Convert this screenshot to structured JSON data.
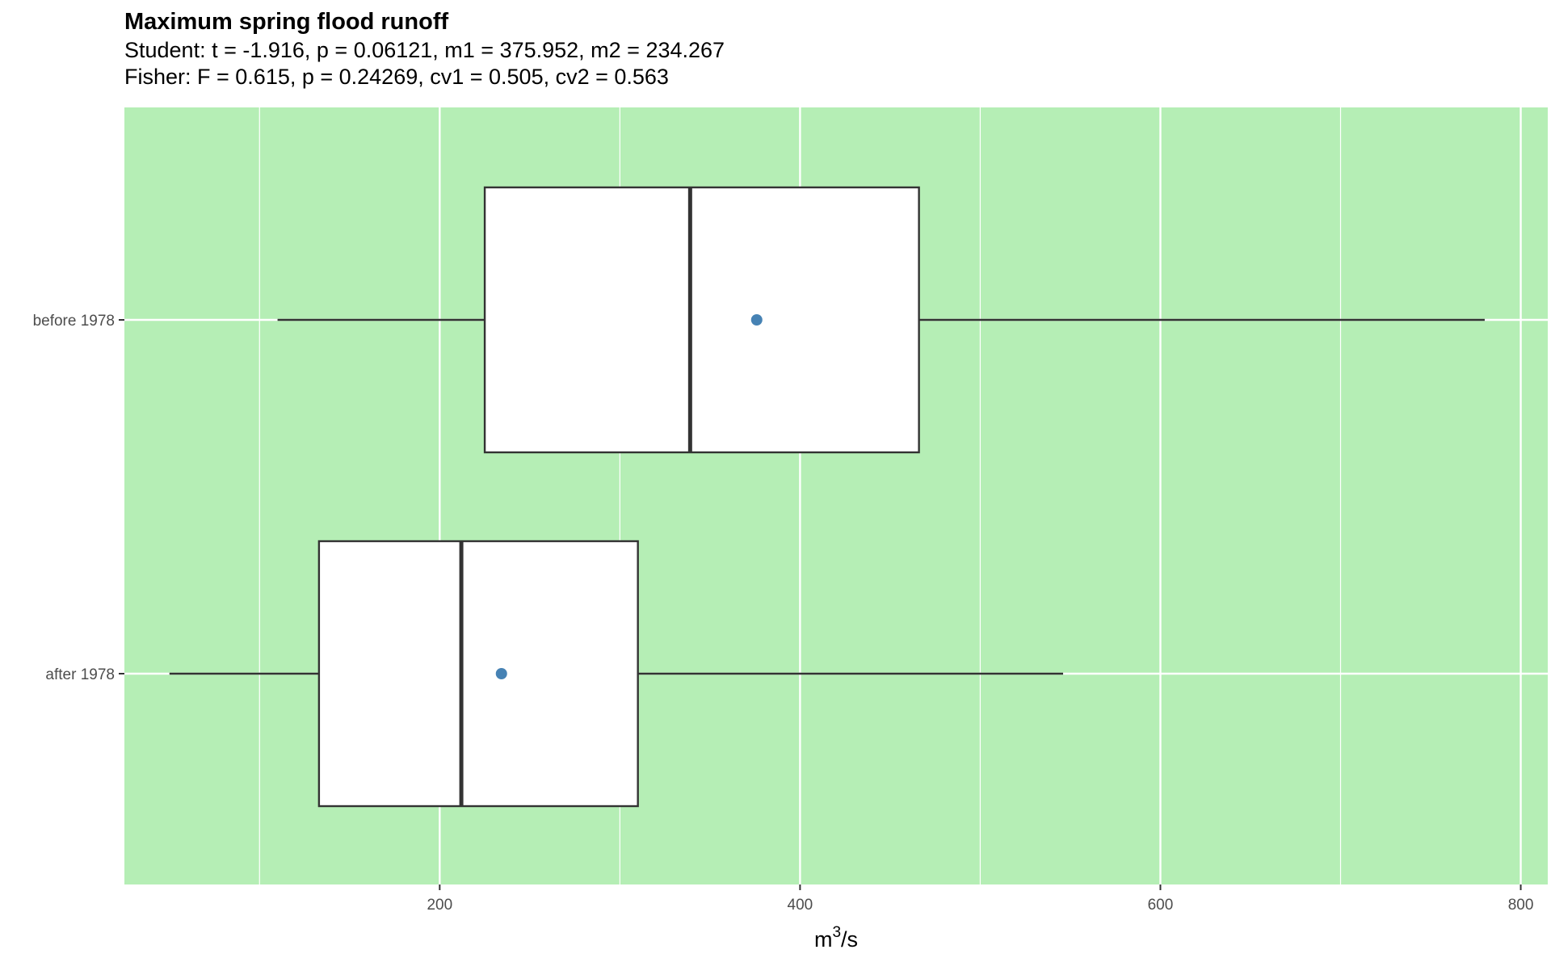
{
  "chart_data": {
    "type": "boxplot",
    "orientation": "horizontal",
    "title": "Maximum spring flood runoff",
    "subtitle_lines": [
      "Student: t = -1.916, p = 0.06121, m1 = 375.952, m2 = 234.267",
      "Fisher: F = 0.615, p = 0.24269, cv1 = 0.505, cv2 = 0.563"
    ],
    "xlabel": "m3/s",
    "xlabel_base": "m",
    "xlabel_sup": "3",
    "xlabel_rest": "/s",
    "xlim": [
      25,
      815
    ],
    "x_ticks": [
      200,
      400,
      600,
      800
    ],
    "x_minor_ticks": [
      100,
      300,
      500,
      700
    ],
    "categories": [
      "before 1978",
      "after 1978"
    ],
    "boxes": [
      {
        "label": "before 1978",
        "whisker_low": 110,
        "q1": 225,
        "median": 339,
        "q3": 466,
        "whisker_high": 780,
        "mean": 375.952
      },
      {
        "label": "after 1978",
        "whisker_low": 50,
        "q1": 133,
        "median": 212,
        "q3": 310,
        "whisker_high": 546,
        "mean": 234.267
      }
    ],
    "grid": true,
    "legend": "none",
    "colors": {
      "panel_background": "#b5eeb5",
      "grid": "#ffffff",
      "box_fill": "#ffffff",
      "box_stroke": "#333333",
      "mean_point": "#4682b4",
      "tick_text": "#4d4d4d"
    }
  }
}
